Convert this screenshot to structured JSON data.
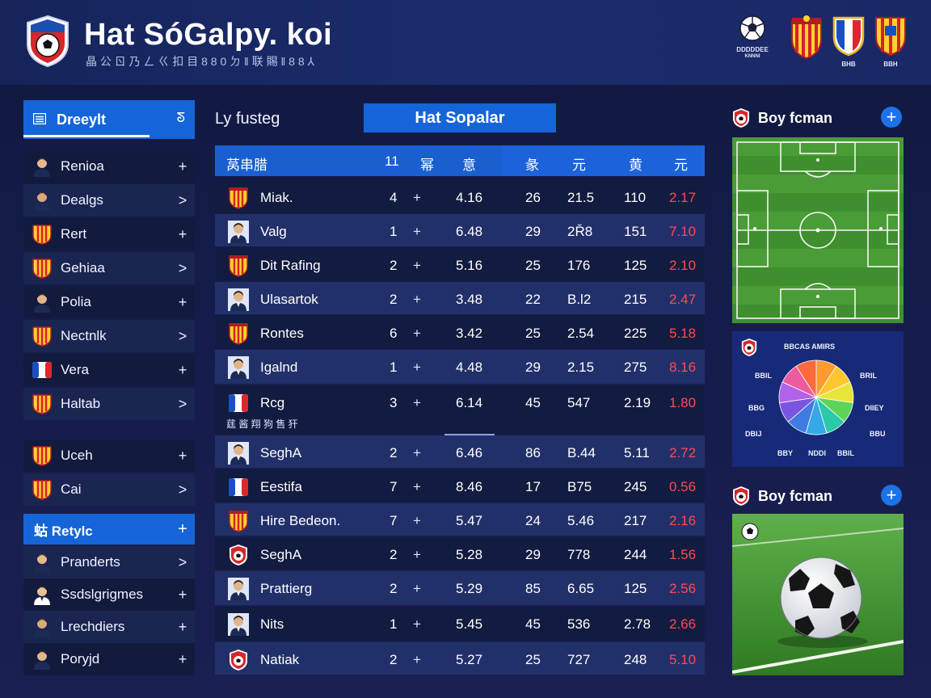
{
  "header": {
    "title": "Hat SóGalpy. koi",
    "subtitle": "晶 公 ㄖ 乃 ㄥ ㄍ 扣 目 8 8 0 ㄉ ‖ 联 賜 ‖ 8 8 ⅄",
    "badges": [
      {
        "name": "ball-emblem",
        "caption_1": "DDDDDEE",
        "caption_2": "KNNNI"
      },
      {
        "name": "crest-red-yellow",
        "caption": ""
      },
      {
        "name": "crest-tricolor",
        "caption": "BHB"
      },
      {
        "name": "crest-stripes",
        "caption": "BBH"
      }
    ]
  },
  "sidebar": {
    "header_label": "Dreeylt",
    "collapse_glyph": "ᘕ",
    "items": [
      {
        "label": "Renioa",
        "avatar": "person",
        "action": "+"
      },
      {
        "label": "Dealgs",
        "avatar": "person",
        "action": ">"
      },
      {
        "label": "Rert",
        "avatar": "crest",
        "action": "+"
      },
      {
        "label": "Gehiaa",
        "avatar": "crest",
        "action": ">"
      },
      {
        "label": "Polia",
        "avatar": "person",
        "action": "+"
      },
      {
        "label": "Nectnlk",
        "avatar": "crest",
        "action": ">"
      },
      {
        "label": "Vera",
        "avatar": "flag",
        "action": "+"
      },
      {
        "label": "Haltab",
        "avatar": "crest",
        "action": ">"
      },
      {
        "label": "Uceh",
        "avatar": "crest",
        "action": "+"
      },
      {
        "label": "Cai",
        "avatar": "crest",
        "action": ">"
      }
    ],
    "group": {
      "label": "蛄 Retylc",
      "action": "+"
    },
    "group_items": [
      {
        "label": "Pranderts",
        "avatar": "person",
        "action": ">"
      },
      {
        "label": "Ssdslgrigmes",
        "avatar": "person",
        "action": "+"
      },
      {
        "label": "Lrechdiers",
        "avatar": "person",
        "action": "+"
      },
      {
        "label": "Poryjd",
        "avatar": "person",
        "action": "+"
      }
    ]
  },
  "main": {
    "title": "Ly fusteg",
    "tab_label": "Hat Sopalar",
    "columns": [
      "莴串腊",
      "11",
      "幂",
      "意",
      "彖",
      "元",
      "黄",
      "元"
    ],
    "rows": [
      {
        "icon": "crest",
        "name": "Miak.",
        "c1": "4",
        "c2": "+",
        "c3": "4.16",
        "c4": "26",
        "c5": "21.5",
        "c6": "110",
        "c7": "2.17"
      },
      {
        "icon": "person",
        "name": "Valg",
        "c1": "1",
        "c2": "+",
        "c3": "6.48",
        "c4": "29",
        "c5": "2Ř8",
        "c6": "151",
        "c7": "7.10"
      },
      {
        "icon": "crest",
        "name": "Dit Rafing",
        "c1": "2",
        "c2": "+",
        "c3": "5.16",
        "c4": "25",
        "c5": "176",
        "c6": "125",
        "c7": "2.10"
      },
      {
        "icon": "person",
        "name": "Ulasartok",
        "c1": "2",
        "c2": "+",
        "c3": "3.48",
        "c4": "22",
        "c5": "B.l2",
        "c6": "215",
        "c7": "2.47"
      },
      {
        "icon": "crest",
        "name": "Rontes",
        "c1": "6",
        "c2": "+",
        "c3": "3.42",
        "c4": "25",
        "c5": "2.54",
        "c6": "225",
        "c7": "5.18"
      },
      {
        "icon": "person",
        "name": "Igalnd",
        "c1": "1",
        "c2": "+",
        "c3": "4.48",
        "c4": "29",
        "c5": "2.15",
        "c6": "275",
        "c7": "8.16"
      },
      {
        "icon": "flag",
        "name": "Rcg",
        "c1": "3",
        "c2": "+",
        "c3": "6.14",
        "c4": "45",
        "c5": "547",
        "c6": "2.19",
        "c7": "1.80"
      },
      {
        "icon": "person",
        "name": "SeghA",
        "c1": "2",
        "c2": "+",
        "c3": "6.46",
        "c4": "86",
        "c5": "B.44",
        "c6": "5.11",
        "c7": "2.72"
      },
      {
        "icon": "flag",
        "name": "Eestifa",
        "c1": "7",
        "c2": "+",
        "c3": "8.46",
        "c4": "17",
        "c5": "B75",
        "c6": "245",
        "c7": "0.56"
      },
      {
        "icon": "crest",
        "name": "Hire Bedeon.",
        "c1": "7",
        "c2": "+",
        "c3": "5.47",
        "c4": "24",
        "c5": "5.46",
        "c6": "217",
        "c7": "2.16"
      },
      {
        "icon": "club",
        "name": "SeghA",
        "c1": "2",
        "c2": "+",
        "c3": "5.28",
        "c4": "29",
        "c5": "778",
        "c6": "244",
        "c7": "1.56"
      },
      {
        "icon": "person",
        "name": "Prattierg",
        "c1": "2",
        "c2": "+",
        "c3": "5.29",
        "c4": "85",
        "c5": "6.65",
        "c6": "125",
        "c7": "2.56"
      },
      {
        "icon": "person",
        "name": "Nits",
        "c1": "1",
        "c2": "+",
        "c3": "5.45",
        "c4": "45",
        "c5": "536",
        "c6": "2.78",
        "c7": "2.66"
      },
      {
        "icon": "club",
        "name": "Natiak",
        "c1": "2",
        "c2": "+",
        "c3": "5.27",
        "c4": "25",
        "c5": "727",
        "c6": "248",
        "c7": "5.10"
      }
    ],
    "row_note": "莛 酱 翔 狗 售 犴"
  },
  "right": {
    "panel1_title": "Boy fcman",
    "panel2_title": "Boy fcman",
    "add_glyph": "+",
    "pie": {
      "title": "BBCAS AMIRS",
      "labels": [
        "BBlL",
        "BRIL",
        "BBG",
        "DIIEY",
        "DBIJ",
        "BBU",
        "BBY",
        "NDDI",
        "BBIL"
      ],
      "colors": [
        "#ff9a2e",
        "#ffc62e",
        "#e9e43a",
        "#5fd45a",
        "#29c9a9",
        "#35a8e8",
        "#3f7be0",
        "#7b55e0",
        "#b062e8",
        "#ee5aa0",
        "#ff6a3d"
      ]
    }
  }
}
